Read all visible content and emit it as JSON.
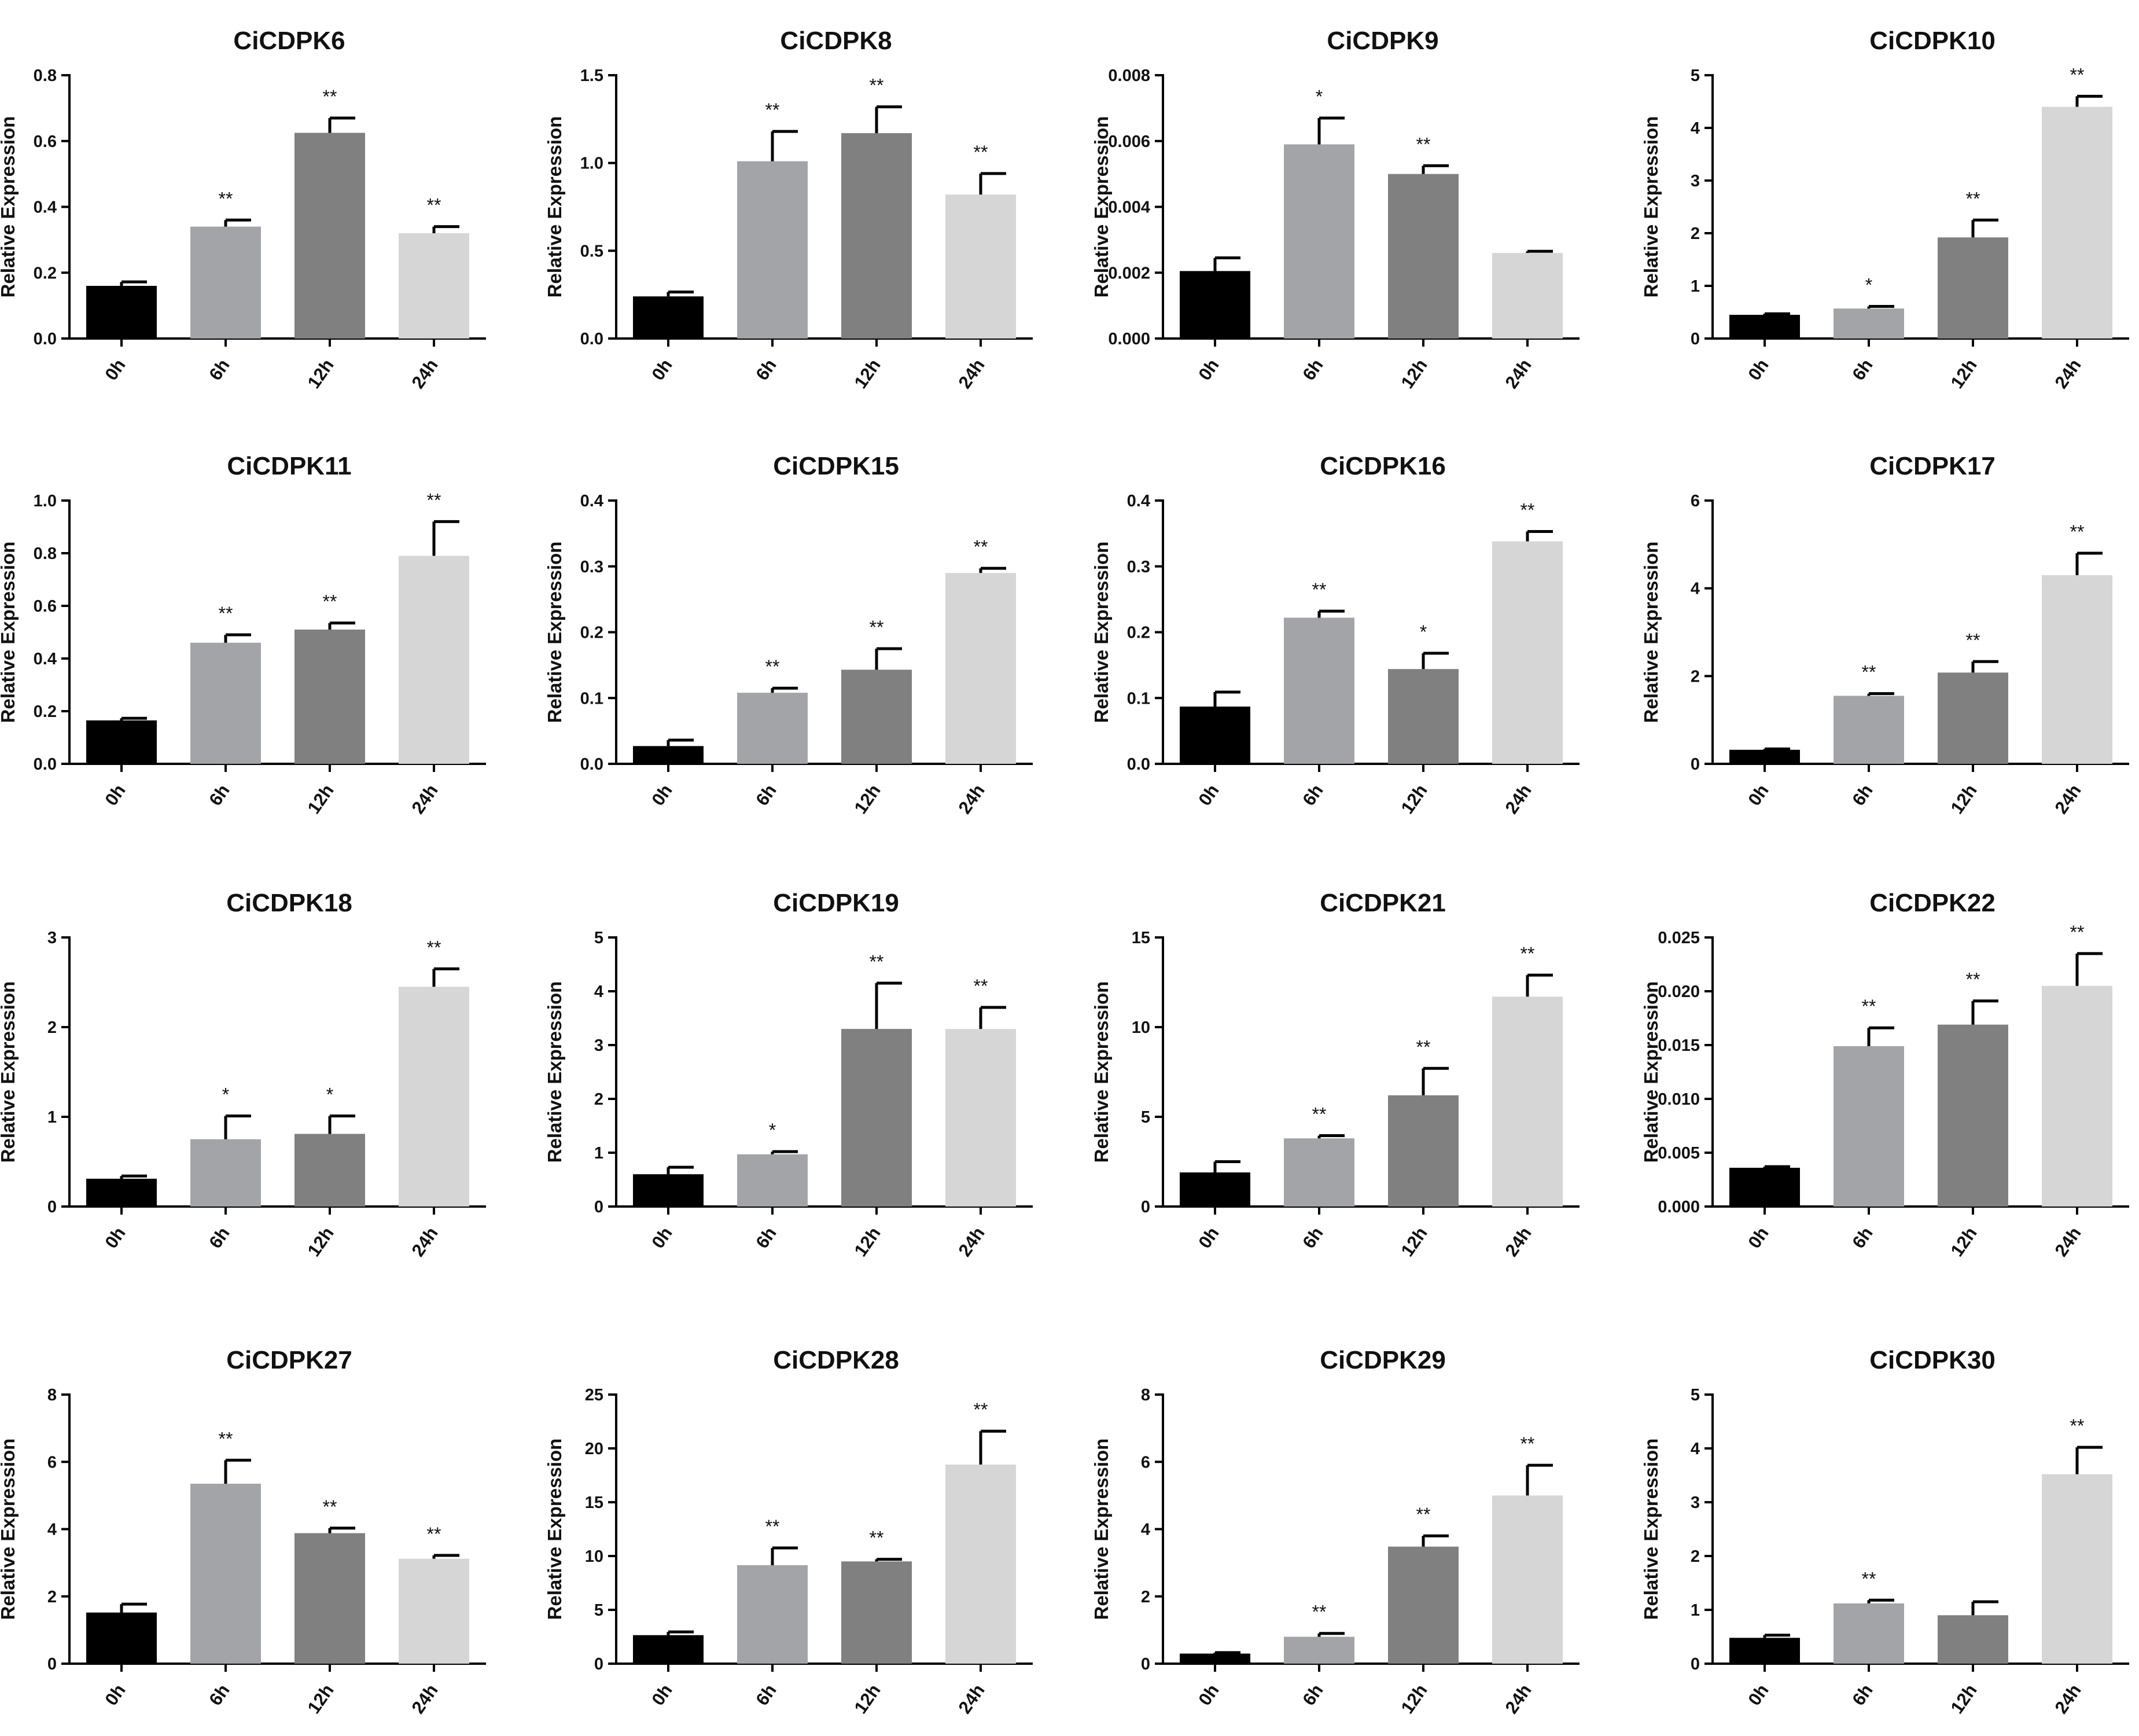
{
  "chart_data": [
    {
      "type": "bar",
      "title": "CiCDPK6",
      "ylabel": "Relative Expression",
      "xlabel": "",
      "categories": [
        "0h",
        "6h",
        "12h",
        "24h"
      ],
      "values": [
        0.16,
        0.34,
        0.625,
        0.32
      ],
      "errors": [
        0.012,
        0.02,
        0.045,
        0.02
      ],
      "significance": [
        "",
        "**",
        "**",
        "**"
      ],
      "ylim": [
        0,
        0.8
      ],
      "yticks": [
        "0.0",
        "0.2",
        "0.4",
        "0.6",
        "0.8"
      ]
    },
    {
      "type": "bar",
      "title": "CiCDPK8",
      "ylabel": "Relative Expression",
      "xlabel": "",
      "categories": [
        "0h",
        "6h",
        "12h",
        "24h"
      ],
      "values": [
        0.24,
        1.01,
        1.17,
        0.82
      ],
      "errors": [
        0.025,
        0.17,
        0.15,
        0.12
      ],
      "significance": [
        "",
        "**",
        "**",
        "**"
      ],
      "ylim": [
        0,
        1.5
      ],
      "yticks": [
        "0.0",
        "0.5",
        "1.0",
        "1.5"
      ]
    },
    {
      "type": "bar",
      "title": "CiCDPK9",
      "ylabel": "Relative Expression",
      "xlabel": "",
      "categories": [
        "0h",
        "6h",
        "12h",
        "24h"
      ],
      "values": [
        0.00205,
        0.0059,
        0.005,
        0.0026
      ],
      "errors": [
        0.0004,
        0.0008,
        0.00025,
        5e-05
      ],
      "significance": [
        "",
        "*",
        "**",
        ""
      ],
      "ylim": [
        0,
        0.008
      ],
      "yticks": [
        "0.000",
        "0.002",
        "0.004",
        "0.006",
        "0.008"
      ]
    },
    {
      "type": "bar",
      "title": "CiCDPK10",
      "ylabel": "Relative Expression",
      "xlabel": "",
      "categories": [
        "0h",
        "6h",
        "12h",
        "24h"
      ],
      "values": [
        0.45,
        0.57,
        1.92,
        4.4
      ],
      "errors": [
        0.02,
        0.04,
        0.33,
        0.2
      ],
      "significance": [
        "",
        "*",
        "**",
        "**"
      ],
      "ylim": [
        0,
        5
      ],
      "yticks": [
        "0",
        "1",
        "2",
        "3",
        "4",
        "5"
      ]
    },
    {
      "type": "bar",
      "title": "CiCDPK11",
      "ylabel": "Relative Expression",
      "xlabel": "",
      "categories": [
        "0h",
        "6h",
        "12h",
        "24h"
      ],
      "values": [
        0.165,
        0.46,
        0.51,
        0.79
      ],
      "errors": [
        0.008,
        0.03,
        0.025,
        0.13
      ],
      "significance": [
        "",
        "**",
        "**",
        "**"
      ],
      "ylim": [
        0,
        1.0
      ],
      "yticks": [
        "0.0",
        "0.2",
        "0.4",
        "0.6",
        "0.8",
        "1.0"
      ]
    },
    {
      "type": "bar",
      "title": "CiCDPK15",
      "ylabel": "Relative Expression",
      "xlabel": "",
      "categories": [
        "0h",
        "6h",
        "12h",
        "24h"
      ],
      "values": [
        0.027,
        0.108,
        0.143,
        0.29
      ],
      "errors": [
        0.009,
        0.007,
        0.032,
        0.007
      ],
      "significance": [
        "",
        "**",
        "**",
        "**"
      ],
      "ylim": [
        0,
        0.4
      ],
      "yticks": [
        "0.0",
        "0.1",
        "0.2",
        "0.3",
        "0.4"
      ]
    },
    {
      "type": "bar",
      "title": "CiCDPK16",
      "ylabel": "Relative Expression",
      "xlabel": "",
      "categories": [
        "0h",
        "6h",
        "12h",
        "24h"
      ],
      "values": [
        0.087,
        0.222,
        0.144,
        0.338
      ],
      "errors": [
        0.022,
        0.01,
        0.024,
        0.015
      ],
      "significance": [
        "",
        "**",
        "*",
        "**"
      ],
      "ylim": [
        0,
        0.4
      ],
      "yticks": [
        "0.0",
        "0.1",
        "0.2",
        "0.3",
        "0.4"
      ]
    },
    {
      "type": "bar",
      "title": "CiCDPK17",
      "ylabel": "Relative Expression",
      "xlabel": "",
      "categories": [
        "0h",
        "6h",
        "12h",
        "24h"
      ],
      "values": [
        0.32,
        1.55,
        2.08,
        4.3
      ],
      "errors": [
        0.02,
        0.05,
        0.25,
        0.5
      ],
      "significance": [
        "",
        "**",
        "**",
        "**"
      ],
      "ylim": [
        0,
        6
      ],
      "yticks": [
        "0",
        "2",
        "4",
        "6"
      ]
    },
    {
      "type": "bar",
      "title": "CiCDPK18",
      "ylabel": "Relative Expression",
      "xlabel": "",
      "categories": [
        "0h",
        "6h",
        "12h",
        "24h"
      ],
      "values": [
        0.31,
        0.75,
        0.81,
        2.45
      ],
      "errors": [
        0.03,
        0.26,
        0.2,
        0.2
      ],
      "significance": [
        "",
        "*",
        "*",
        "**"
      ],
      "ylim": [
        0,
        3
      ],
      "yticks": [
        "0",
        "1",
        "2",
        "3"
      ]
    },
    {
      "type": "bar",
      "title": "CiCDPK19",
      "ylabel": "Relative Expression",
      "xlabel": "",
      "categories": [
        "0h",
        "6h",
        "12h",
        "24h"
      ],
      "values": [
        0.6,
        0.97,
        3.3,
        3.3
      ],
      "errors": [
        0.13,
        0.05,
        0.85,
        0.4
      ],
      "significance": [
        "",
        "*",
        "**",
        "**"
      ],
      "ylim": [
        0,
        5
      ],
      "yticks": [
        "0",
        "1",
        "2",
        "3",
        "4",
        "5"
      ]
    },
    {
      "type": "bar",
      "title": "CiCDPK21",
      "ylabel": "Relative Expression",
      "xlabel": "",
      "categories": [
        "0h",
        "6h",
        "12h",
        "24h"
      ],
      "values": [
        1.9,
        3.8,
        6.2,
        11.7
      ],
      "errors": [
        0.6,
        0.15,
        1.5,
        1.2
      ],
      "significance": [
        "",
        "**",
        "**",
        "**"
      ],
      "ylim": [
        0,
        15
      ],
      "yticks": [
        "0",
        "5",
        "10",
        "15"
      ]
    },
    {
      "type": "bar",
      "title": "CiCDPK22",
      "ylabel": "Relative Expression",
      "xlabel": "",
      "categories": [
        "0h",
        "6h",
        "12h",
        "24h"
      ],
      "values": [
        0.0036,
        0.0149,
        0.0169,
        0.0205
      ],
      "errors": [
        0.0001,
        0.0017,
        0.0022,
        0.003
      ],
      "significance": [
        "",
        "**",
        "**",
        "**"
      ],
      "ylim": [
        0,
        0.025
      ],
      "yticks": [
        "0.000",
        "0.005",
        "0.010",
        "0.015",
        "0.020",
        "0.025"
      ]
    },
    {
      "type": "bar",
      "title": "CiCDPK27",
      "ylabel": "Relative Expression",
      "xlabel": "",
      "categories": [
        "0h",
        "6h",
        "12h",
        "24h"
      ],
      "values": [
        1.52,
        5.35,
        3.88,
        3.12
      ],
      "errors": [
        0.25,
        0.7,
        0.15,
        0.1
      ],
      "significance": [
        "",
        "**",
        "**",
        "**"
      ],
      "ylim": [
        0,
        8
      ],
      "yticks": [
        "0",
        "2",
        "4",
        "6",
        "8"
      ]
    },
    {
      "type": "bar",
      "title": "CiCDPK28",
      "ylabel": "Relative Expression",
      "xlabel": "",
      "categories": [
        "0h",
        "6h",
        "12h",
        "24h"
      ],
      "values": [
        2.65,
        9.15,
        9.5,
        18.5
      ],
      "errors": [
        0.3,
        1.6,
        0.2,
        3.1
      ],
      "significance": [
        "",
        "**",
        "**",
        "**"
      ],
      "ylim": [
        0,
        25
      ],
      "yticks": [
        "0",
        "5",
        "10",
        "15",
        "20",
        "25"
      ]
    },
    {
      "type": "bar",
      "title": "CiCDPK29",
      "ylabel": "Relative Expression",
      "xlabel": "",
      "categories": [
        "0h",
        "6h",
        "12h",
        "24h"
      ],
      "values": [
        0.3,
        0.8,
        3.48,
        5.0
      ],
      "errors": [
        0.03,
        0.1,
        0.32,
        0.9
      ],
      "significance": [
        "",
        "**",
        "**",
        "**"
      ],
      "ylim": [
        0,
        8
      ],
      "yticks": [
        "0",
        "2",
        "4",
        "6",
        "8"
      ]
    },
    {
      "type": "bar",
      "title": "CiCDPK30",
      "ylabel": "Relative Expression",
      "xlabel": "",
      "categories": [
        "0h",
        "6h",
        "12h",
        "24h"
      ],
      "values": [
        0.48,
        1.12,
        0.9,
        3.52
      ],
      "errors": [
        0.05,
        0.06,
        0.25,
        0.5
      ],
      "significance": [
        "",
        "**",
        "",
        "**"
      ],
      "ylim": [
        0,
        5
      ],
      "yticks": [
        "0",
        "1",
        "2",
        "3",
        "4",
        "5"
      ]
    }
  ],
  "colors": {
    "bars": [
      "#000000",
      "#a3a4a8",
      "#808080",
      "#d6d6d6"
    ],
    "axis": "#000000",
    "background": "#ffffff"
  }
}
